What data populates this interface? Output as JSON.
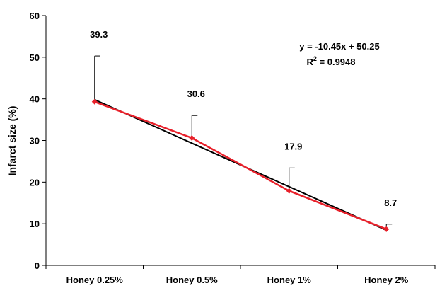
{
  "chart_data": {
    "type": "line",
    "title": "",
    "xlabel": "",
    "ylabel": "Infarct size (%)",
    "ylim": [
      0,
      60
    ],
    "yticks": [
      0,
      10,
      20,
      30,
      40,
      50,
      60
    ],
    "grid": false,
    "categories": [
      "Honey 0.25%",
      "Honey 0.5%",
      "Honey 1%",
      "Honey 2%"
    ],
    "series": [
      {
        "values": [
          39.3,
          30.6,
          17.9,
          8.7
        ],
        "error_upper": [
          11.0,
          5.4,
          5.5,
          1.2
        ],
        "color": "#e8202a",
        "marker": "diamond"
      }
    ],
    "data_labels": [
      "39.3",
      "30.6",
      "17.9",
      "8.7"
    ],
    "trendline": {
      "type": "linear",
      "slope": -10.45,
      "intercept": 50.25,
      "color": "#000000",
      "equation_text": "y = -10.45x + 50.25",
      "r2_prefix": "R",
      "r2_superscript": "2",
      "r2_value": " = 0.9948"
    }
  }
}
